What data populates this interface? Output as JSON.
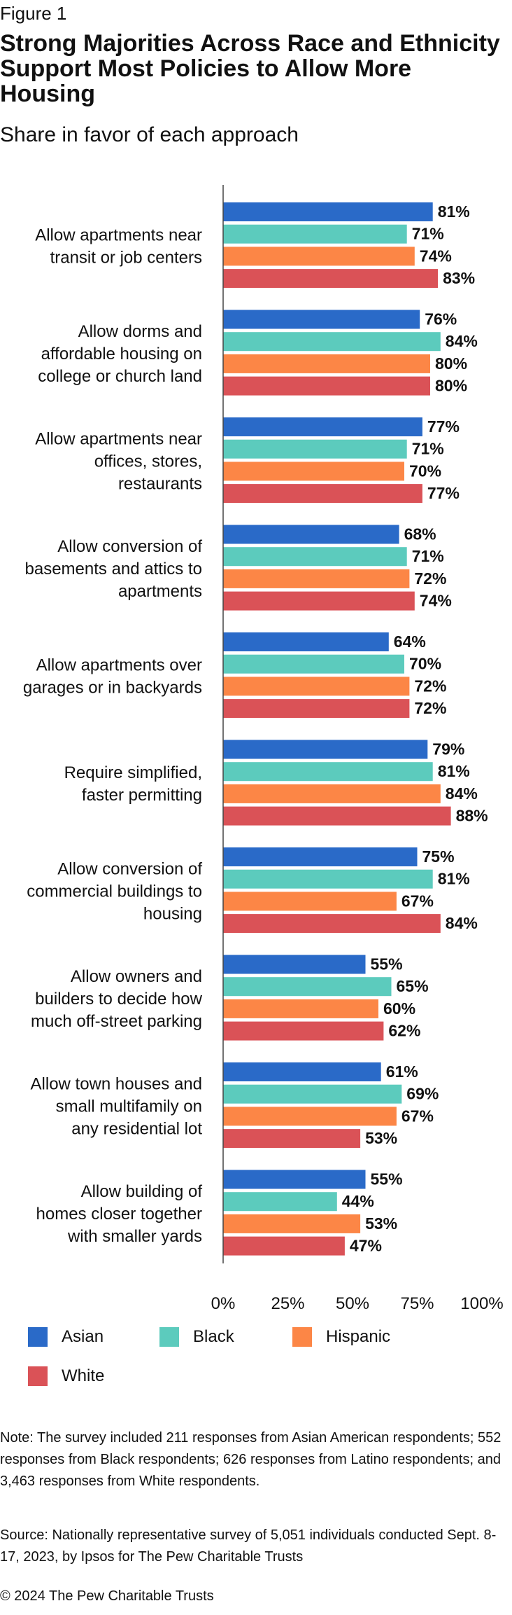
{
  "figure_label": "Figure 1",
  "title": "Strong Majorities Across Race and Ethnicity Support Most Policies to Allow More Housing",
  "subtitle": "Share in favor of each approach",
  "chart_data": {
    "type": "bar",
    "orientation": "horizontal",
    "title": "Strong Majorities Across Race and Ethnicity Support Most Policies to Allow More Housing",
    "subtitle": "Share in favor of each approach",
    "categories": [
      [
        "Allow apartments near",
        "transit or job centers"
      ],
      [
        "Allow dorms and",
        "affordable housing on",
        "college or church land"
      ],
      [
        "Allow apartments near",
        "offices, stores,",
        "restaurants"
      ],
      [
        "Allow conversion of",
        "basements and attics to",
        "apartments"
      ],
      [
        "Allow apartments over",
        "garages or in backyards"
      ],
      [
        "Require simplified,",
        "faster permitting"
      ],
      [
        "Allow conversion of",
        "commercial buildings to",
        "housing"
      ],
      [
        "Allow owners and",
        "builders to decide how",
        "much off-street parking"
      ],
      [
        "Allow town houses and",
        "small multifamily on",
        "any residential lot"
      ],
      [
        "Allow building of",
        "homes closer together",
        "with smaller yards"
      ]
    ],
    "series": [
      {
        "name": "Asian",
        "color": "#2a6ac8",
        "values": [
          81,
          76,
          77,
          68,
          64,
          79,
          75,
          55,
          61,
          55
        ]
      },
      {
        "name": "Black",
        "color": "#5ccbbd",
        "values": [
          71,
          84,
          71,
          71,
          70,
          81,
          81,
          65,
          69,
          44
        ]
      },
      {
        "name": "Hispanic",
        "color": "#fc8646",
        "values": [
          74,
          80,
          70,
          72,
          72,
          84,
          67,
          60,
          67,
          53
        ]
      },
      {
        "name": "White",
        "color": "#da5257",
        "values": [
          83,
          80,
          77,
          74,
          72,
          88,
          84,
          62,
          53,
          47
        ]
      }
    ],
    "value_suffix": "%",
    "xlim": [
      0,
      100
    ],
    "ticks": [
      "0%",
      "25%",
      "50%",
      "75%",
      "100%"
    ],
    "grid": false,
    "legend_placement": "bottom"
  },
  "legend": [
    {
      "label": "Asian",
      "color": "#2a6ac8"
    },
    {
      "label": "Black",
      "color": "#5ccbbd"
    },
    {
      "label": "Hispanic",
      "color": "#fc8646"
    },
    {
      "label": "White",
      "color": "#da5257"
    }
  ],
  "note": "Note: The survey included 211 responses from Asian American respondents; 552 responses from Black respondents; 626 responses from Latino respondents; and 3,463 responses from White respondents.",
  "source": "Source: Nationally representative survey of 5,051 individuals conducted Sept. 8-17, 2023, by Ipsos for The Pew Charitable Trusts",
  "copyright": "© 2024 The Pew Charitable Trusts"
}
